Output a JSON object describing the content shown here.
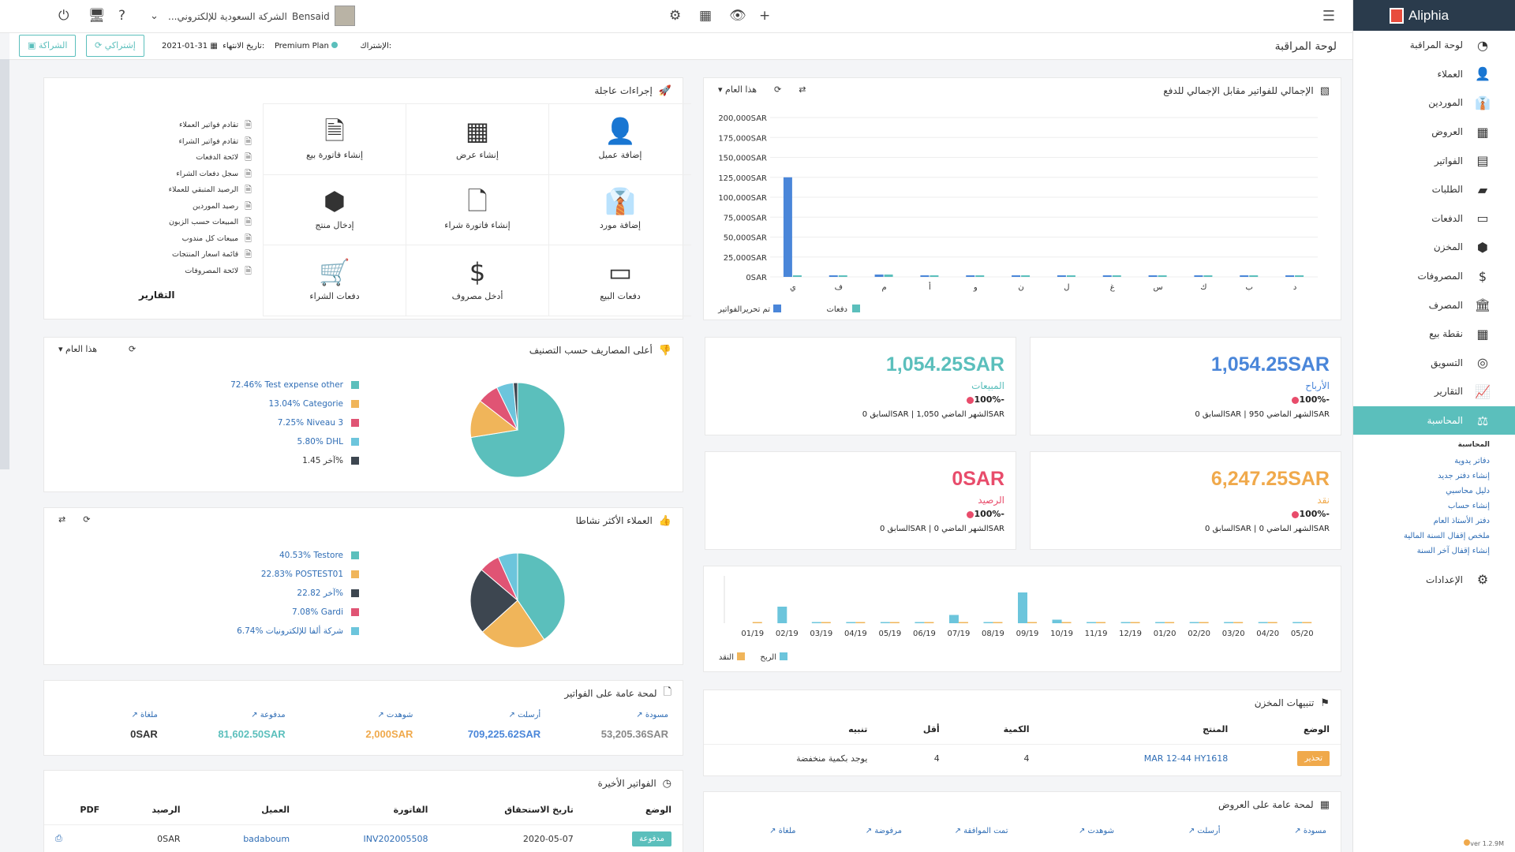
{
  "app": {
    "name": "Aliphia",
    "version": "ver 1.2.9M"
  },
  "topbar": {
    "company": "الشركة السعودية للإلكتروني...",
    "user": "Bensaid"
  },
  "subbar": {
    "page_title": "لوحة المراقبة",
    "subscription_label": "الإشتراك:",
    "plan": "Premium Plan",
    "expiry_label": "تاريخ الانتهاء:",
    "expiry_date": "2021-01-31",
    "subscribe_button": "إشتراكي",
    "buy_button": "الشراكة"
  },
  "sidebar": {
    "items": [
      {
        "label": "لوحة المراقبة",
        "icon": "dashboard-icon",
        "glyph": "◔"
      },
      {
        "label": "العملاء",
        "icon": "user-icon",
        "glyph": "👤"
      },
      {
        "label": "الموردين",
        "icon": "supplier-icon",
        "glyph": "👔"
      },
      {
        "label": "العروض",
        "icon": "calculator-icon",
        "glyph": "▦"
      },
      {
        "label": "الفواتير",
        "icon": "file-icon",
        "glyph": "▤"
      },
      {
        "label": "الطلبات",
        "icon": "briefcase-icon",
        "glyph": "▰"
      },
      {
        "label": "الدفعات",
        "icon": "credit-card-icon",
        "glyph": "▭"
      },
      {
        "label": "المخزن",
        "icon": "box-icon",
        "glyph": "⬢"
      },
      {
        "label": "المصروفات",
        "icon": "dollar-icon",
        "glyph": "$"
      },
      {
        "label": "المصرف",
        "icon": "bank-icon",
        "glyph": "🏛"
      },
      {
        "label": "نقطة بيع",
        "icon": "pos-icon",
        "glyph": "▦"
      },
      {
        "label": "التسويق",
        "icon": "target-icon",
        "glyph": "◎"
      },
      {
        "label": "التقارير",
        "icon": "chart-icon",
        "glyph": "📈"
      },
      {
        "label": "المحاسبة",
        "icon": "balance-icon",
        "glyph": "⚖"
      }
    ],
    "subnav_title": "المحاسبة",
    "subnav": [
      "دفاتر يدوية",
      "إنشاء دفتر جديد",
      "دليل محاسبي",
      "إنشاء حساب",
      "دفتر الأستاذ العام",
      "ملخص إقفال السنة المالية",
      "إنشاء إقفال آخر السنة"
    ],
    "settings": "الإعدادات"
  },
  "quick_actions": {
    "title": "إجراءات عاجلة",
    "actions": [
      {
        "label": "إضافة عميل",
        "icon": "user-icon",
        "glyph": "👤"
      },
      {
        "label": "إنشاء عرض",
        "icon": "calculator-icon",
        "glyph": "▦"
      },
      {
        "label": "إنشاء فاتورة بيع",
        "icon": "invoice-icon",
        "glyph": "🗎"
      },
      {
        "label": "إضافة مورد",
        "icon": "supplier-icon",
        "glyph": "👔"
      },
      {
        "label": "إنشاء فاتورة شراء",
        "icon": "purchase-invoice-icon",
        "glyph": "🗋"
      },
      {
        "label": "إدخال منتج",
        "icon": "box-icon",
        "glyph": "⬢"
      },
      {
        "label": "دفعات البيع",
        "icon": "credit-card-icon",
        "glyph": "▭"
      },
      {
        "label": "أدخل مصروف",
        "icon": "dollar-circle-icon",
        "glyph": "$"
      },
      {
        "label": "دفعات الشراء",
        "icon": "cart-icon",
        "glyph": "🛒"
      }
    ],
    "reports_title": "التقارير",
    "reports": [
      "تقادم فواتير العملاء",
      "تقادم فواتير الشراء",
      "لائحة الدفعات",
      "سجل دفعات الشراء",
      "الرصيد المتبقي للعملاء",
      "رصيد الموردين",
      "المبيعات حسب الزبون",
      "مبيعات كل مندوب",
      "قائمة اسعار المنتجات",
      "لائحة المصروفات"
    ]
  },
  "invoices_chart": {
    "title": "الإجمالي للفواتير مقابل الإجمالي للدفع",
    "period": "هذا العام",
    "chart_data": {
      "type": "bar",
      "categories": [
        "ي",
        "ف",
        "م",
        "أ",
        "و",
        "ن",
        "ل",
        "غ",
        "س",
        "ك",
        "ب",
        "د"
      ],
      "series": [
        {
          "name": "تم تحريرالفواتير",
          "values": [
            125000,
            0,
            2000,
            0,
            0,
            0,
            0,
            0,
            0,
            0,
            0,
            0
          ],
          "color": "#4a86d9"
        },
        {
          "name": "دفعات",
          "values": [
            0,
            0,
            2000,
            0,
            0,
            0,
            0,
            0,
            0,
            0,
            0,
            0
          ],
          "color": "#5bbfbc"
        }
      ],
      "ylim": [
        0,
        200000
      ],
      "yticks": [
        "0SAR",
        "25,000SAR",
        "50,000SAR",
        "75,000SAR",
        "100,000SAR",
        "125,000SAR",
        "150,000SAR",
        "175,000SAR",
        "200,000SAR"
      ],
      "ytick_values": [
        0,
        25000,
        50000,
        75000,
        100000,
        125000,
        150000,
        175000,
        200000
      ]
    }
  },
  "kpis": [
    {
      "value": "1,054.25SAR",
      "label": "الأرباح",
      "color": "#4a86d9",
      "pct": "100%-",
      "prev": "السابق 0SAR | الشهر الماضي 950SAR"
    },
    {
      "value": "1,054.25SAR",
      "label": "المبيعات",
      "color": "#5bbfbc",
      "pct": "100%-",
      "prev": "السابق 0SAR | الشهر الماضي 1,050SAR"
    },
    {
      "value": "6,247.25SAR",
      "label": "نقد",
      "color": "#f0a94b",
      "pct": "100%-",
      "prev": "السابق 0SAR | الشهر الماضي 0SAR"
    },
    {
      "value": "0SAR",
      "label": "الرصيد",
      "color": "#e84c6b",
      "pct": "100%-",
      "prev": "السابق 0SAR | الشهر الماضي 0SAR"
    }
  ],
  "expenses": {
    "title": "أعلى المصاريف حسب التصنيف",
    "period": "هذا العام",
    "chart_data": {
      "type": "pie",
      "labels": [
        "Test expense other",
        "Categorie",
        "Niveau 3",
        "DHL",
        "آخر"
      ],
      "values": [
        72.46,
        13.04,
        7.25,
        5.8,
        1.45
      ],
      "display": [
        "72.46% Test expense other",
        "13.04% Categorie",
        "7.25% Niveau 3",
        "5.80% DHL",
        "آخر 1.45%"
      ],
      "colors": [
        "#5bbfbc",
        "#f0b55a",
        "#e05474",
        "#6cc5dc",
        "#3d4650"
      ]
    }
  },
  "customers": {
    "title": "العملاء الأكثر نشاطا",
    "chart_data": {
      "type": "pie",
      "labels": [
        "Testore",
        "POSTEST01",
        "آخر",
        "Gardi",
        "شركة ألفا للإلكترونيات"
      ],
      "values": [
        40.53,
        22.83,
        22.82,
        7.08,
        6.74
      ],
      "display": [
        "40.53% Testore",
        "22.83% POSTEST01",
        "آخر 22.82%",
        "7.08% Gardi",
        "6.74% شركة ألفا للإلكترونيات"
      ],
      "colors": [
        "#5bbfbc",
        "#f0b55a",
        "#3d4650",
        "#e05474",
        "#6cc5dc"
      ]
    }
  },
  "monthly_chart": {
    "chart_data": {
      "type": "bar",
      "categories": [
        "01/19",
        "02/19",
        "03/19",
        "04/19",
        "05/19",
        "06/19",
        "07/19",
        "08/19",
        "09/19",
        "10/19",
        "11/19",
        "12/19",
        "01/20",
        "02/20",
        "03/20",
        "04/20",
        "05/20"
      ],
      "series": [
        {
          "name": "الربح",
          "values": [
            0,
            1400,
            50,
            40,
            30,
            20,
            700,
            30,
            2600,
            300,
            20,
            20,
            20,
            20,
            60,
            20,
            20
          ],
          "color": "#6cc5dc"
        },
        {
          "name": "النقد",
          "values": [
            40,
            0,
            40,
            40,
            40,
            40,
            40,
            40,
            40,
            40,
            40,
            40,
            40,
            40,
            40,
            40,
            40
          ],
          "color": "#f0b55a"
        }
      ],
      "ylim": [
        0,
        4000
      ]
    }
  },
  "invoice_overview": {
    "title": "لمحة عامة على الفواتير",
    "cols": [
      {
        "label": "مسودة",
        "value": "53,205.36SAR",
        "color": "#888888"
      },
      {
        "label": "أرسلت",
        "value": "709,225.62SAR",
        "color": "#4a86d9"
      },
      {
        "label": "شوهدت",
        "value": "2,000SAR",
        "color": "#f0a94b"
      },
      {
        "label": "مدفوعة",
        "value": "81,602.50SAR",
        "color": "#5bbfbc"
      },
      {
        "label": "ملغاة",
        "value": "0SAR",
        "color": "#333333"
      }
    ]
  },
  "stock_alerts": {
    "title": "تنبيهات المخزن",
    "headers": [
      "الوضع",
      "المنتج",
      "الكمية",
      "أقل",
      "تنبيه"
    ],
    "rows": [
      {
        "status": "تحذير",
        "product": "MAR 12-44 HY1618",
        "qty": "4",
        "min": "4",
        "alert": "يوجد بكمية منخفضة"
      }
    ]
  },
  "recent_invoices": {
    "title": "الفواتير الأخيرة",
    "headers": [
      "الوضع",
      "تاريخ الاستحقاق",
      "الفاتورة",
      "العميل",
      "الرصيد",
      "PDF"
    ],
    "rows": [
      {
        "status": "مدفوعة",
        "due": "2020-05-07",
        "invoice": "INV202005508",
        "client": "badaboum",
        "balance": "0SAR"
      }
    ]
  },
  "quotes_overview": {
    "title": "لمحة عامة على العروض",
    "labels": [
      "مسودة",
      "أرسلت",
      "شوهدت",
      "تمت الموافقة",
      "مرفوضة",
      "ملغاة"
    ]
  }
}
